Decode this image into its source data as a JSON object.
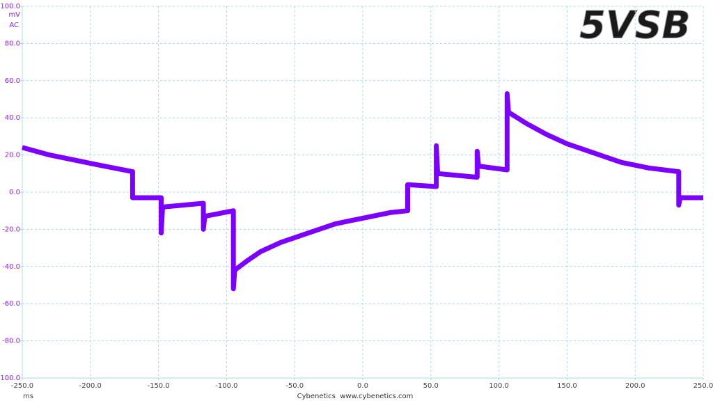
{
  "chart_data": {
    "type": "line",
    "title": "5VSB",
    "y_unit": "mV",
    "coupling": "AC",
    "xlabel": "ms",
    "footer": "Cybenetics  www.cybenetics.com",
    "color": "#7b00ff",
    "grid": true,
    "xlim": [
      -250,
      250
    ],
    "ylim": [
      -100,
      100
    ],
    "xticks": [
      {
        "value": -250,
        "label": "-250.0"
      },
      {
        "value": -200,
        "label": "-200.0"
      },
      {
        "value": -150,
        "label": "-150.0"
      },
      {
        "value": -100,
        "label": "-100.0"
      },
      {
        "value": -50,
        "label": "-50.0"
      },
      {
        "value": 0,
        "label": "0.0"
      },
      {
        "value": 50,
        "label": "50.0"
      },
      {
        "value": 100,
        "label": "100.0"
      },
      {
        "value": 150,
        "label": "150.0"
      },
      {
        "value": 200,
        "label": "200.0"
      },
      {
        "value": 250,
        "label": "250.0"
      }
    ],
    "yticks": [
      {
        "value": -100,
        "label": "-100.0"
      },
      {
        "value": -80,
        "label": "-80.0"
      },
      {
        "value": -60,
        "label": "-60.0"
      },
      {
        "value": -40,
        "label": "-40.0"
      },
      {
        "value": -20,
        "label": "-20.0"
      },
      {
        "value": 0,
        "label": "0.0"
      },
      {
        "value": 20,
        "label": "20.0"
      },
      {
        "value": 40,
        "label": "40.0"
      },
      {
        "value": 60,
        "label": "60.0"
      },
      {
        "value": 80,
        "label": "80.0"
      },
      {
        "value": 100,
        "label": "100.0"
      }
    ],
    "x": [
      -250,
      -230,
      -210,
      -190,
      -169,
      -169,
      -148,
      -148,
      -147,
      -117,
      -117,
      -116,
      -95,
      -95,
      -94,
      -85,
      -75,
      -60,
      -40,
      -20,
      0,
      20,
      33,
      33,
      54,
      54,
      55,
      84,
      84,
      85,
      106,
      106,
      107,
      120,
      135,
      150,
      170,
      190,
      210,
      232,
      232,
      233,
      250
    ],
    "values": [
      24,
      20,
      17,
      14,
      11,
      -3,
      -3,
      -22,
      -8,
      -6,
      -20,
      -13,
      -10,
      -52,
      -42,
      -37,
      -32,
      -27,
      -22,
      -17,
      -14,
      -11,
      -10,
      4,
      3,
      25,
      10,
      8,
      22,
      14,
      12,
      53,
      43,
      37,
      31,
      26,
      21,
      16,
      13,
      11,
      -7,
      -3,
      -3
    ]
  }
}
